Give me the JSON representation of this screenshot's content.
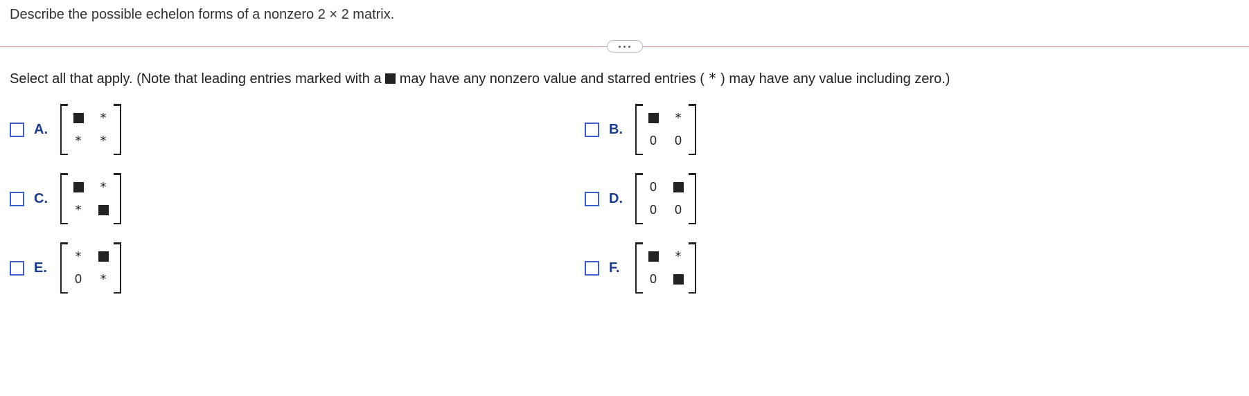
{
  "question": "Describe the possible echelon forms of a nonzero 2 × 2 matrix.",
  "instruction_prefix": "Select all that apply. (Note that leading entries marked with a ",
  "instruction_mid": " may have any nonzero value and starred entries ( ",
  "instruction_star": "*",
  "instruction_suffix": " ) may have any value including zero.)",
  "divider_color": "#c99",
  "checkbox_border": "#3b5ecb",
  "option_label_color": "#1a3a8a",
  "options": [
    {
      "key": "A",
      "label": "A.",
      "matrix": [
        [
          "square",
          "star"
        ],
        [
          "star",
          "star"
        ]
      ]
    },
    {
      "key": "B",
      "label": "B.",
      "matrix": [
        [
          "square",
          "star"
        ],
        [
          "0",
          "0"
        ]
      ]
    },
    {
      "key": "C",
      "label": "C.",
      "matrix": [
        [
          "square",
          "star"
        ],
        [
          "star",
          "square"
        ]
      ]
    },
    {
      "key": "D",
      "label": "D.",
      "matrix": [
        [
          "0",
          "square"
        ],
        [
          "0",
          "0"
        ]
      ]
    },
    {
      "key": "E",
      "label": "E.",
      "matrix": [
        [
          "star",
          "square"
        ],
        [
          "0",
          "star"
        ]
      ]
    },
    {
      "key": "F",
      "label": "F.",
      "matrix": [
        [
          "square",
          "star"
        ],
        [
          "0",
          "square"
        ]
      ]
    }
  ]
}
